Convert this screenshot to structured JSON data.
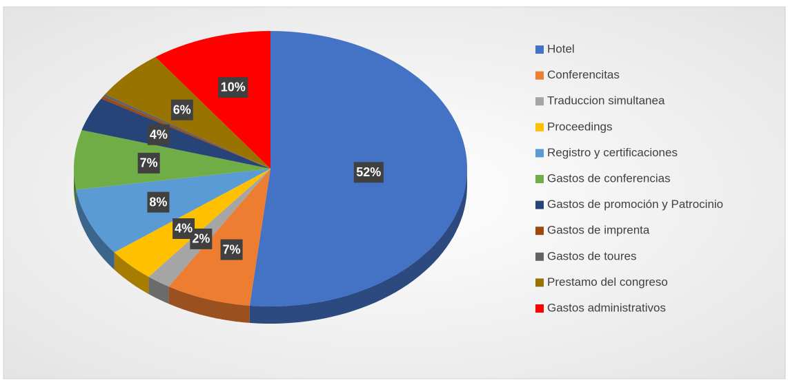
{
  "chart_data": {
    "type": "pie",
    "categories": [
      "Hotel",
      "Conferencitas",
      "Traduccion simultanea",
      "Proceedings",
      "Registro y certificaciones",
      "Gastos de conferencias",
      "Gastos de promoción y Patrocinio",
      "Gastos de imprenta",
      "Gastos de toures",
      "Prestamo del congreso",
      "Gastos administrativos"
    ],
    "values": [
      52,
      7,
      2,
      4,
      8,
      7,
      4,
      0.3,
      0.3,
      6,
      10
    ],
    "value_labels": [
      "52%",
      "7%",
      "2%",
      "4%",
      "8%",
      "7%",
      "4%",
      null,
      null,
      "6%",
      "10%"
    ],
    "colors": [
      "#4472c4",
      "#ed7d31",
      "#a5a5a5",
      "#ffc000",
      "#5b9bd5",
      "#70ad47",
      "#264478",
      "#9e480e",
      "#636363",
      "#997300",
      "#ff0000"
    ],
    "legend": "right"
  }
}
